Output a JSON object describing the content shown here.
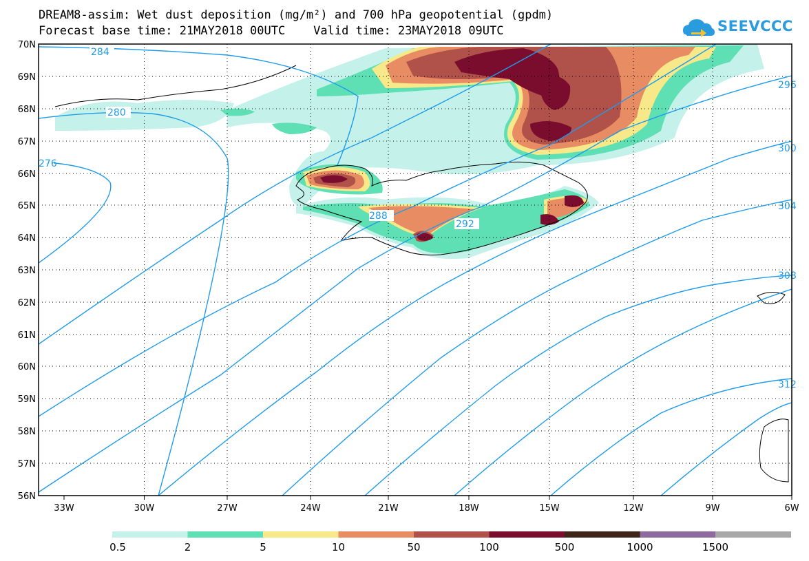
{
  "header": {
    "title_line1": "DREAM8-assim: Wet dust deposition (mg/m²) and 700 hPa geopotential (gpdm)",
    "title_line2": "Forecast base time: 21MAY2018 00UTC    Valid time: 23MAY2018 09UTC",
    "logo_text": "SEEVCCC"
  },
  "map": {
    "region": "North Atlantic / Iceland",
    "lon_labels": [
      "33W",
      "30W",
      "27W",
      "24W",
      "21W",
      "18W",
      "15W",
      "12W",
      "9W",
      "6W"
    ],
    "lat_labels": [
      "70N",
      "69N",
      "68N",
      "67N",
      "66N",
      "65N",
      "64N",
      "63N",
      "62N",
      "61N",
      "60N",
      "59N",
      "58N",
      "57N",
      "56N"
    ],
    "contour_labels": [
      "284",
      "280",
      "276",
      "288",
      "292",
      "296",
      "300",
      "304",
      "308",
      "312"
    ],
    "contour_color": "#1f9bea",
    "grid": "dotted"
  },
  "colorbar": {
    "colors": [
      "#c4f2ea",
      "#5fdfb4",
      "#f7e98a",
      "#e88d63",
      "#b0524a",
      "#7a0d2e",
      "#3f2418",
      "#8e6a9e",
      "#a8a8a8"
    ],
    "labels": [
      "0.5",
      "2",
      "5",
      "10",
      "50",
      "100",
      "500",
      "1000",
      "1500"
    ]
  }
}
